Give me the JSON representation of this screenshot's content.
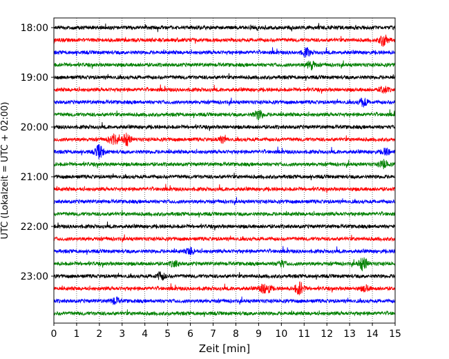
{
  "chart_data": {
    "type": "line",
    "title": "",
    "xlabel": "Zeit  [min]",
    "ylabel": "UTC (Lokalzeit = UTC + 02:00)",
    "xlim": [
      0,
      15
    ],
    "x_ticks": [
      "0",
      "1",
      "2",
      "3",
      "4",
      "5",
      "6",
      "7",
      "8",
      "9",
      "10",
      "11",
      "12",
      "13",
      "14",
      "15"
    ],
    "y_ticks": [
      "18:00",
      "19:00",
      "20:00",
      "21:00",
      "22:00",
      "23:00"
    ],
    "grid": "vertical dotted lines at each minute",
    "trace_interval_minutes": 15,
    "trace_colors": [
      "#000000",
      "#ff0000",
      "#0000ff",
      "#008000"
    ],
    "traces": [
      {
        "start": "18:00",
        "color": "#000000",
        "events": []
      },
      {
        "start": "18:15",
        "color": "#ff0000",
        "events": [
          [
            14.5,
            0.9
          ]
        ]
      },
      {
        "start": "18:30",
        "color": "#0000ff",
        "events": [
          [
            11.1,
            0.6
          ]
        ]
      },
      {
        "start": "18:45",
        "color": "#008000",
        "events": [
          [
            11.3,
            0.6
          ]
        ]
      },
      {
        "start": "19:00",
        "color": "#000000",
        "events": []
      },
      {
        "start": "19:15",
        "color": "#ff0000",
        "events": [
          [
            14.5,
            0.5
          ]
        ]
      },
      {
        "start": "19:30",
        "color": "#0000ff",
        "events": [
          [
            13.6,
            0.6
          ]
        ]
      },
      {
        "start": "19:45",
        "color": "#008000",
        "events": [
          [
            9.0,
            0.7
          ]
        ]
      },
      {
        "start": "20:00",
        "color": "#000000",
        "events": []
      },
      {
        "start": "20:15",
        "color": "#ff0000",
        "events": [
          [
            2.6,
            0.7
          ],
          [
            3.2,
            0.9
          ],
          [
            7.4,
            0.4
          ]
        ]
      },
      {
        "start": "20:30",
        "color": "#0000ff",
        "events": [
          [
            2.0,
            1.0
          ],
          [
            14.6,
            0.5
          ]
        ]
      },
      {
        "start": "20:45",
        "color": "#008000",
        "events": [
          [
            14.5,
            0.6
          ]
        ]
      },
      {
        "start": "21:00",
        "color": "#000000",
        "events": []
      },
      {
        "start": "21:15",
        "color": "#ff0000",
        "events": []
      },
      {
        "start": "21:30",
        "color": "#0000ff",
        "events": []
      },
      {
        "start": "21:45",
        "color": "#008000",
        "events": []
      },
      {
        "start": "22:00",
        "color": "#000000",
        "events": []
      },
      {
        "start": "22:15",
        "color": "#ff0000",
        "events": []
      },
      {
        "start": "22:30",
        "color": "#0000ff",
        "events": [
          [
            6.0,
            0.5
          ]
        ]
      },
      {
        "start": "22:45",
        "color": "#008000",
        "events": [
          [
            13.6,
            1.0
          ],
          [
            10.0,
            0.4
          ],
          [
            5.3,
            0.4
          ]
        ]
      },
      {
        "start": "23:00",
        "color": "#000000",
        "events": [
          [
            4.7,
            0.6
          ]
        ]
      },
      {
        "start": "23:15",
        "color": "#ff0000",
        "events": [
          [
            9.2,
            0.6
          ],
          [
            9.4,
            0.5
          ],
          [
            10.8,
            1.0
          ],
          [
            13.7,
            0.4
          ]
        ]
      },
      {
        "start": "23:30",
        "color": "#0000ff",
        "events": [
          [
            2.7,
            0.5
          ]
        ]
      },
      {
        "start": "23:45",
        "color": "#008000",
        "events": []
      }
    ]
  }
}
